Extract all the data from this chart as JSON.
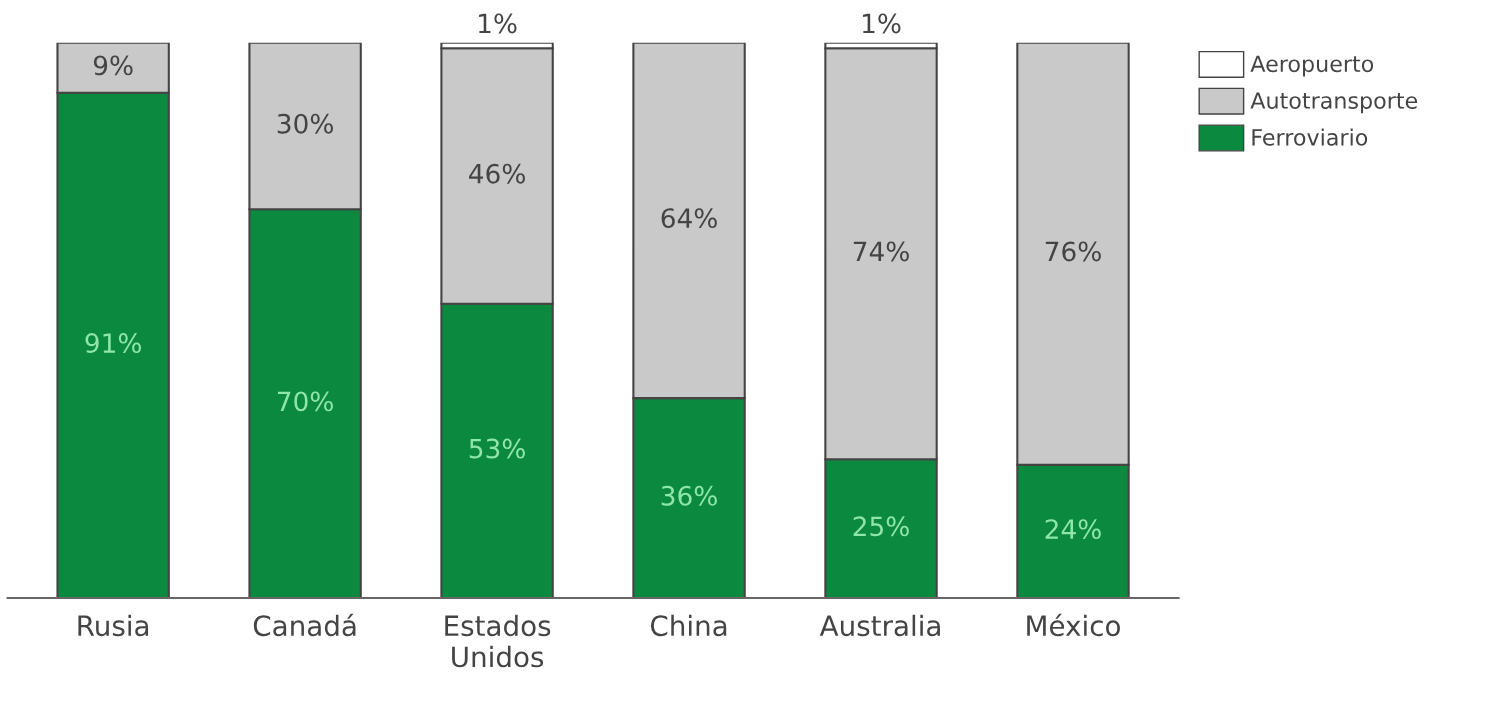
{
  "chart_data": {
    "type": "bar",
    "stacked": true,
    "legend": "top right",
    "grid": false,
    "tick_labels": "x",
    "categories": [
      "Rusia",
      "Canadá",
      "Estados\nUnidos",
      "China",
      "Australia",
      "México"
    ],
    "series": [
      {
        "name": "Ferroviario",
        "color": "#0b8a3f",
        "values": [
          91,
          70,
          53,
          36,
          25,
          24
        ],
        "value_labels": [
          "91%",
          "70%",
          "53%",
          "36%",
          "25%",
          "24%"
        ]
      },
      {
        "name": "Autotransporte",
        "color": "#c9c9c9",
        "values": [
          9,
          30,
          46,
          64,
          74,
          76
        ],
        "value_labels": [
          "9%",
          "30%",
          "46%",
          "64%",
          "74%",
          "76%"
        ]
      },
      {
        "name": "Aeropuerto",
        "color": "#ffffff",
        "values": [
          0,
          0,
          1,
          0,
          1,
          0
        ],
        "value_labels": [
          null,
          null,
          "1%",
          null,
          "1%",
          null
        ]
      }
    ]
  }
}
